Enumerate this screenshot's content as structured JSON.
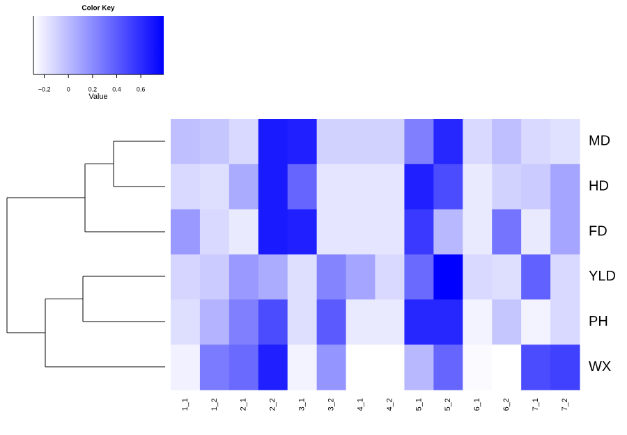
{
  "chart_data": {
    "type": "heatmap",
    "colors": [
      "#ffffff",
      "#0000ff"
    ],
    "color_key": {
      "title": "Color Key",
      "label": "Value",
      "xlim": [
        -0.29,
        0.79
      ],
      "xticks": [
        {
          "value": -0.2,
          "label": "−0.2"
        },
        0,
        0.2,
        0.4,
        0.6
      ]
    },
    "categories": [
      "1_1",
      "1_2",
      "2_1",
      "2_2",
      "3_1",
      "3_2",
      "4_1",
      "4_2",
      "5_1",
      "5_2",
      "6_1",
      "6_2",
      "7_1",
      "7_2"
    ],
    "series": [
      {
        "name": "MD",
        "values": [
          -0.02,
          -0.05,
          -0.13,
          0.68,
          0.66,
          -0.1,
          -0.1,
          -0.1,
          0.25,
          0.63,
          -0.13,
          -0.02,
          -0.13,
          -0.16
        ]
      },
      {
        "name": "HD",
        "values": [
          -0.13,
          -0.15,
          0.07,
          0.68,
          0.36,
          -0.18,
          -0.18,
          -0.18,
          0.66,
          0.47,
          -0.2,
          -0.1,
          -0.07,
          0.09
        ]
      },
      {
        "name": "FD",
        "values": [
          0.14,
          -0.13,
          -0.2,
          0.68,
          0.66,
          -0.18,
          -0.18,
          -0.18,
          0.55,
          0.01,
          -0.2,
          0.3,
          -0.2,
          0.09
        ]
      },
      {
        "name": "YLD",
        "values": [
          -0.11,
          -0.07,
          0.14,
          0.06,
          -0.15,
          0.23,
          0.09,
          -0.13,
          0.34,
          0.79,
          -0.13,
          -0.15,
          0.38,
          -0.13
        ]
      },
      {
        "name": "PH",
        "values": [
          -0.15,
          0.03,
          0.25,
          0.47,
          -0.15,
          0.41,
          -0.2,
          -0.2,
          0.63,
          0.63,
          -0.24,
          -0.05,
          -0.24,
          -0.13
        ]
      },
      {
        "name": "WX",
        "values": [
          -0.23,
          0.27,
          0.34,
          0.66,
          -0.24,
          0.16,
          -0.29,
          -0.29,
          0.01,
          0.36,
          -0.27,
          -0.29,
          0.47,
          0.52
        ]
      }
    ]
  }
}
